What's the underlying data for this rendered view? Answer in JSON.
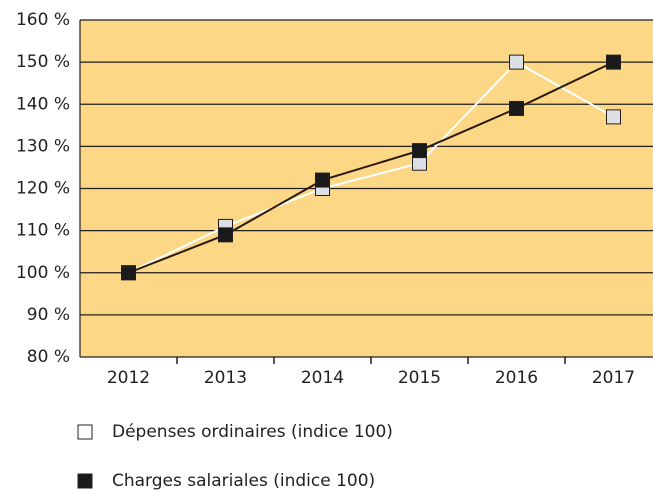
{
  "chart_data": {
    "type": "line",
    "categories": [
      "2012",
      "2013",
      "2014",
      "2015",
      "2016",
      "2017"
    ],
    "series": [
      {
        "name": "Dépenses ordinaires (indice 100)",
        "color": "#ffffff",
        "marker_color": "#dcdfe6",
        "values": [
          100,
          111,
          120,
          126,
          150,
          137
        ]
      },
      {
        "name": "Charges salariales (indice 100)",
        "color": "#2a1a12",
        "marker_color": "#1a1a1a",
        "values": [
          100,
          109,
          122,
          129,
          139,
          150
        ]
      }
    ],
    "ylim": [
      80,
      160
    ],
    "yticks": [
      {
        "value": 80,
        "label": "80 %"
      },
      {
        "value": 90,
        "label": "90 %"
      },
      {
        "value": 100,
        "label": "100 %"
      },
      {
        "value": 110,
        "label": "110 %"
      },
      {
        "value": 120,
        "label": "120 %"
      },
      {
        "value": 130,
        "label": "130 %"
      },
      {
        "value": 140,
        "label": "140 %"
      },
      {
        "value": 150,
        "label": "150 %"
      },
      {
        "value": 160,
        "label": "160 %"
      }
    ],
    "grid": true,
    "background": "#fcd886"
  }
}
